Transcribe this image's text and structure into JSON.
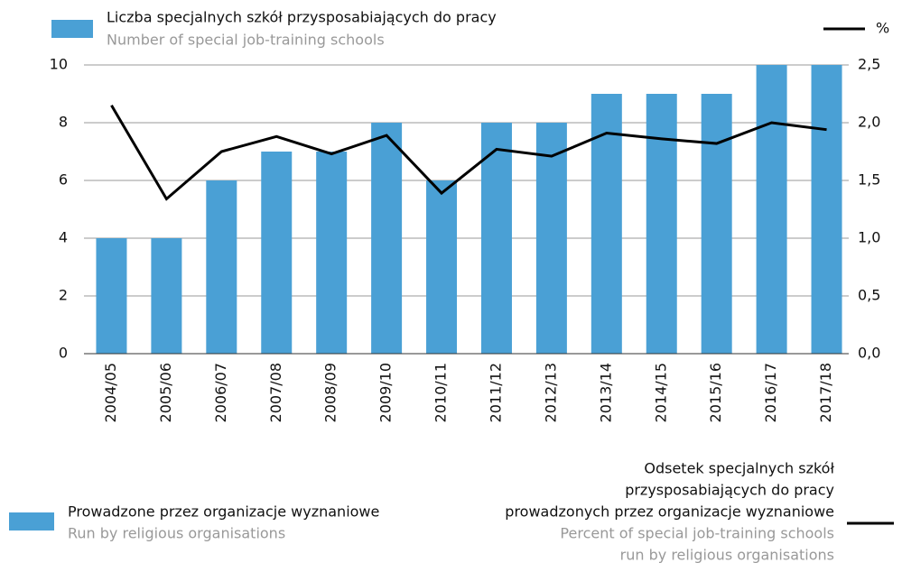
{
  "chart_data": {
    "type": "bar_line",
    "categories": [
      "2004/05",
      "2005/06",
      "2006/07",
      "2007/08",
      "2008/09",
      "2009/10",
      "2010/11",
      "2011/12",
      "2012/13",
      "2013/14",
      "2014/15",
      "2015/16",
      "2016/17",
      "2017/18"
    ],
    "series": [
      {
        "name": "Liczba specjalnych szkół przysposabiających do pracy",
        "name_en": "Number of special job-training schools",
        "color": "#4aa0d5",
        "type": "bar",
        "values": [
          4,
          4,
          6,
          7,
          7,
          8,
          6,
          8,
          8,
          9,
          9,
          9,
          10,
          10
        ]
      },
      {
        "name": "%",
        "color": "#000000",
        "type": "line",
        "axis": "y2",
        "values": [
          2.15,
          1.34,
          1.75,
          1.88,
          1.73,
          1.89,
          1.39,
          1.77,
          1.71,
          1.91,
          1.86,
          1.82,
          2.0,
          1.94
        ]
      }
    ],
    "ylim": [
      0,
      10
    ],
    "yticks": [
      0,
      2,
      4,
      6,
      8,
      10
    ],
    "y2lim": [
      0,
      2.5
    ],
    "y2ticks": [
      {
        "value": 0,
        "label": "0,0"
      },
      {
        "value": 0.5,
        "label": "0,5"
      },
      {
        "value": 1,
        "label": "1,0"
      },
      {
        "value": 1.5,
        "label": "1,5"
      },
      {
        "value": 2,
        "label": "2,0"
      },
      {
        "value": 2.5,
        "label": "2,5"
      }
    ],
    "grid": true,
    "legend_notes": [
      {
        "name": [
          "Prowadzone przez organizacje wyznaniowe"
        ],
        "translation": [
          "Run by religious organisations"
        ]
      },
      {
        "name": [
          "Odsetek specjalnych szkół",
          "przysposabiających do pracy",
          "prowadzonych przez organizacje wyznaniowe"
        ],
        "translation": [
          "Percent of special job-training schools",
          "run by religious organisations"
        ]
      }
    ]
  }
}
